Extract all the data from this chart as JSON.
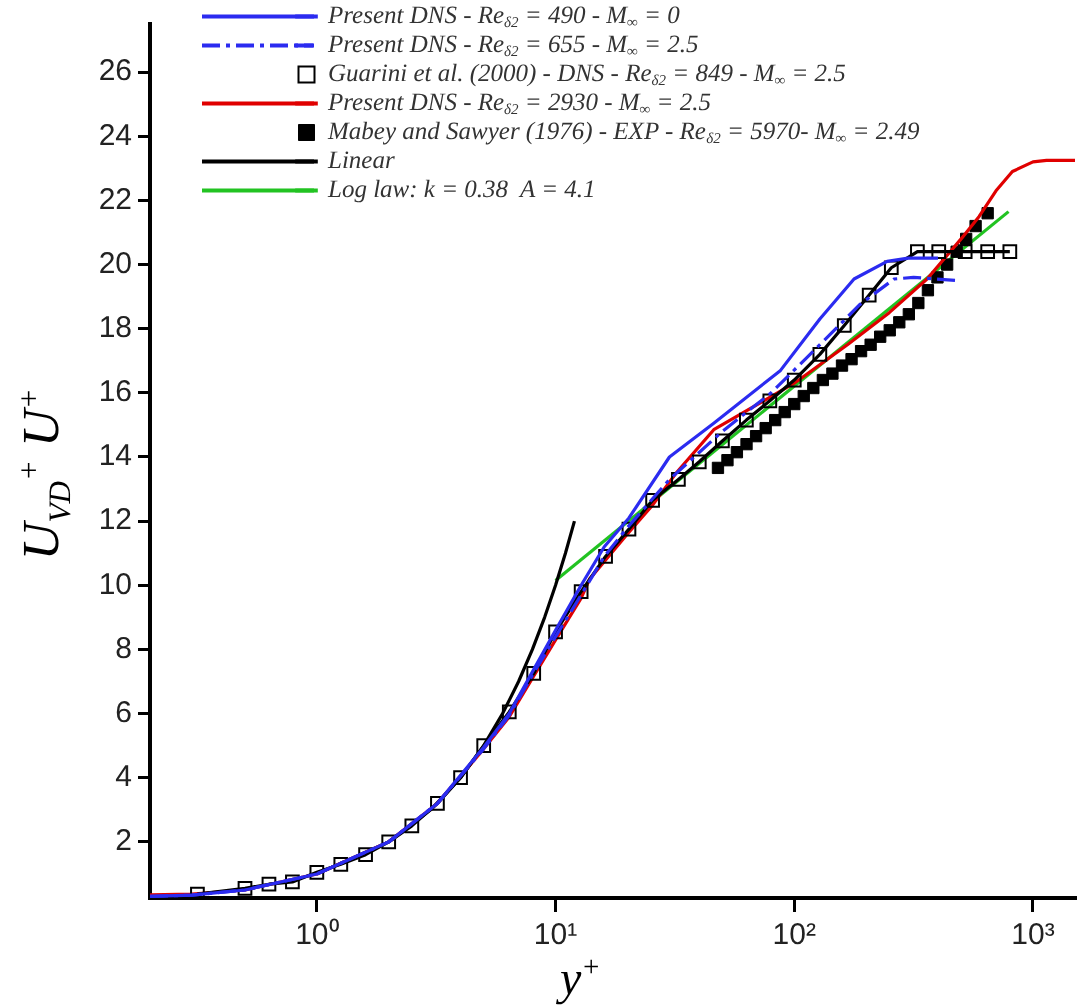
{
  "chart_data": {
    "type": "line",
    "xlabel": "y$^{+}$",
    "ylabel": "U$_{VD}$$^{+}$   U$^{+}$",
    "log": "x",
    "xlim": [
      0.2,
      1500
    ],
    "ylim": [
      0.25,
      27.5
    ],
    "xticks": [
      {
        "value": 1,
        "label": "10⁰"
      },
      {
        "value": 10,
        "label": "10¹"
      },
      {
        "value": 100,
        "label": "10²"
      },
      {
        "value": 1000,
        "label": "10³"
      }
    ],
    "yticks": [
      2,
      4,
      6,
      8,
      10,
      12,
      14,
      16,
      18,
      20,
      22,
      24,
      26
    ],
    "grid": false,
    "legend": "top left",
    "series": [
      {
        "name": "Present DNS - Re$_{δ2}$ = 490 - M$_{∞}$ = 0",
        "color": "#2b2bf0",
        "line_style": "solid",
        "marker": "none",
        "x": [
          0.2,
          0.3,
          0.5,
          1,
          2,
          3.2,
          5,
          6.4,
          8,
          10,
          12.8,
          16,
          20.3,
          30,
          46,
          87.6,
          128,
          178,
          245,
          300,
          400
        ],
        "values": [
          0.3,
          0.34,
          0.5,
          1.0,
          2.0,
          3.2,
          4.95,
          6.0,
          7.3,
          8.6,
          10.0,
          11.2,
          12.1,
          14.0,
          15.05,
          16.7,
          18.3,
          19.55,
          20.1,
          20.2,
          20.2
        ]
      },
      {
        "name": "Present DNS - Re$_{δ2}$ = 655 - M$_{∞}$ = 2.5",
        "color": "#2b2bf0",
        "line_style": "dashdot",
        "marker": "none",
        "x": [
          0.2,
          0.3,
          0.5,
          1,
          2,
          3.2,
          5,
          6.4,
          8,
          10,
          12.8,
          16,
          20,
          30,
          50,
          80,
          128,
          188,
          262,
          316,
          490
        ],
        "values": [
          0.3,
          0.34,
          0.5,
          1.0,
          2.0,
          3.2,
          4.9,
          5.95,
          7.2,
          8.4,
          9.7,
          10.9,
          11.8,
          13.3,
          14.8,
          16.0,
          17.5,
          18.75,
          19.55,
          19.6,
          19.5
        ]
      },
      {
        "name": "Guarini et al. (2000) - DNS - Re$_{δ2}$ = 849 - M$_{∞}$ = 2.5",
        "color": "#000000",
        "line_style": "solid",
        "marker": "square",
        "x": [
          0.316,
          0.5,
          0.63,
          0.79,
          1.0,
          1.26,
          1.6,
          2.0,
          2.5,
          3.2,
          4.0,
          5.0,
          6.4,
          8.1,
          10,
          12.8,
          16.2,
          20.3,
          25.5,
          32.7,
          40,
          50,
          63,
          79,
          100,
          128,
          162,
          206,
          255,
          328,
          403,
          520,
          646,
          800
        ],
        "values": [
          0.37,
          0.55,
          0.68,
          0.75,
          1.05,
          1.3,
          1.6,
          2.0,
          2.5,
          3.2,
          4.0,
          5.0,
          6.05,
          7.25,
          8.55,
          9.8,
          10.9,
          11.75,
          12.65,
          13.3,
          13.85,
          14.5,
          15.15,
          15.75,
          16.4,
          17.2,
          18.1,
          19.05,
          19.9,
          20.4,
          20.4,
          20.4,
          20.4,
          20.4
        ]
      },
      {
        "name": "Present DNS - Re$_{δ2}$ = 2930 - M$_{∞}$ = 2.5",
        "color": "#e00000",
        "line_style": "solid",
        "marker": "none",
        "x": [
          0.2,
          0.3,
          0.5,
          1,
          2,
          3.2,
          5,
          6.4,
          8,
          10,
          12.8,
          13.9,
          20,
          25.5,
          32,
          46,
          100,
          167,
          250,
          360,
          500,
          595,
          700,
          820,
          1000,
          1140,
          1500
        ],
        "values": [
          0.35,
          0.37,
          0.5,
          1.0,
          2.0,
          3.2,
          4.9,
          5.9,
          7.1,
          8.3,
          9.6,
          10.2,
          11.6,
          12.5,
          13.5,
          14.85,
          16.3,
          17.5,
          18.5,
          19.55,
          20.8,
          21.5,
          22.3,
          22.9,
          23.2,
          23.25,
          23.25
        ]
      },
      {
        "name": "Mabey and Sawyer (1976) - EXP - Re$_{δ2}$ = 5970- M$_{∞}$ = 2.49",
        "type": "scatter",
        "color": "#000000",
        "marker": "square",
        "x": [
          47.9,
          52.5,
          57.5,
          63.1,
          69.2,
          75.9,
          83.2,
          91.2,
          100,
          109.6,
          120.2,
          131.8,
          144.5,
          158.5,
          173.8,
          190.5,
          208.9,
          229.1,
          251.2,
          275.4,
          302,
          331,
          363,
          398,
          437,
          479,
          525,
          575,
          646
        ],
        "values": [
          13.66,
          13.9,
          14.15,
          14.4,
          14.65,
          14.9,
          15.15,
          15.4,
          15.65,
          15.9,
          16.15,
          16.4,
          16.6,
          16.85,
          17.05,
          17.3,
          17.5,
          17.75,
          17.95,
          18.2,
          18.45,
          18.8,
          19.2,
          19.6,
          20.0,
          20.4,
          20.8,
          21.2,
          21.6
        ]
      },
      {
        "name": "Linear",
        "color": "#000000",
        "line_style": "solid",
        "marker": "none",
        "x": [
          1,
          2,
          3,
          4,
          5,
          6,
          7,
          8,
          9,
          10,
          11,
          12
        ],
        "values": [
          1,
          2,
          3,
          4,
          5,
          6,
          7,
          8,
          9,
          10,
          11,
          12
        ]
      },
      {
        "name": "Log law: k = 0.38  A = 4.1",
        "color": "#22c322",
        "line_style": "solid",
        "marker": "none",
        "x": [
          10,
          790
        ],
        "values": [
          10.15,
          21.65
        ]
      }
    ]
  }
}
